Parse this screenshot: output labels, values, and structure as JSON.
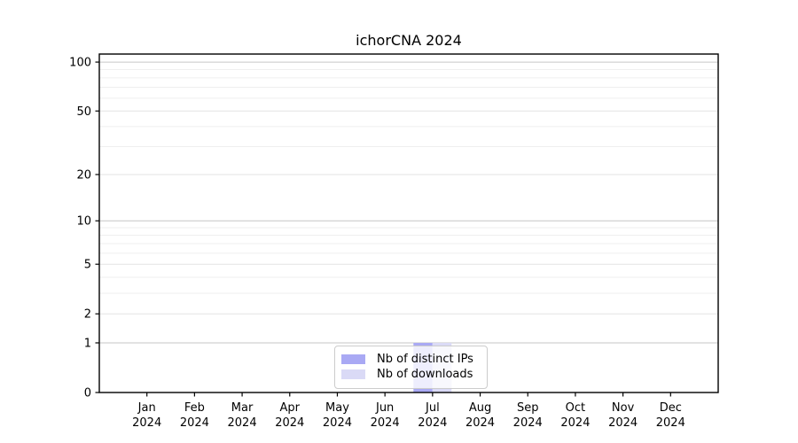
{
  "figure": {
    "background": "#ffffff"
  },
  "chart_data": {
    "type": "bar",
    "title": "ichorCNA 2024",
    "months": [
      "Jan",
      "Feb",
      "Mar",
      "Apr",
      "May",
      "Jun",
      "Jul",
      "Aug",
      "Sep",
      "Oct",
      "Nov",
      "Dec"
    ],
    "year": "2024",
    "categories": [
      "Jan 2024",
      "Feb 2024",
      "Mar 2024",
      "Apr 2024",
      "May 2024",
      "Jun 2024",
      "Jul 2024",
      "Aug 2024",
      "Sep 2024",
      "Oct 2024",
      "Nov 2024",
      "Dec 2024"
    ],
    "series": [
      {
        "name": "Nb of distinct IPs",
        "color": "#a9a9f4",
        "values": [
          0,
          0,
          0,
          0,
          0,
          0,
          1,
          0,
          0,
          0,
          0,
          0
        ]
      },
      {
        "name": "Nb of downloads",
        "color": "#dadaf6",
        "values": [
          0,
          0,
          0,
          0,
          0,
          0,
          1,
          0,
          0,
          0,
          0,
          0
        ]
      }
    ],
    "xlabel": "",
    "ylabel": "",
    "y_ticks": [
      0,
      1,
      2,
      5,
      10,
      20,
      50,
      100
    ],
    "y_minor_ticks": [
      3,
      4,
      6,
      7,
      8,
      9,
      30,
      40,
      60,
      70,
      80,
      90
    ],
    "y_scale": "log10(1+v)",
    "ylim": [
      0,
      112
    ],
    "grid": true,
    "legend_position": "lower center",
    "colors": {
      "grid_decade": "#c6c6c6",
      "grid_labeled": "#e3e3e3",
      "grid_minor": "#efefef",
      "axis": "#000000",
      "tick_text": "#000000"
    }
  }
}
